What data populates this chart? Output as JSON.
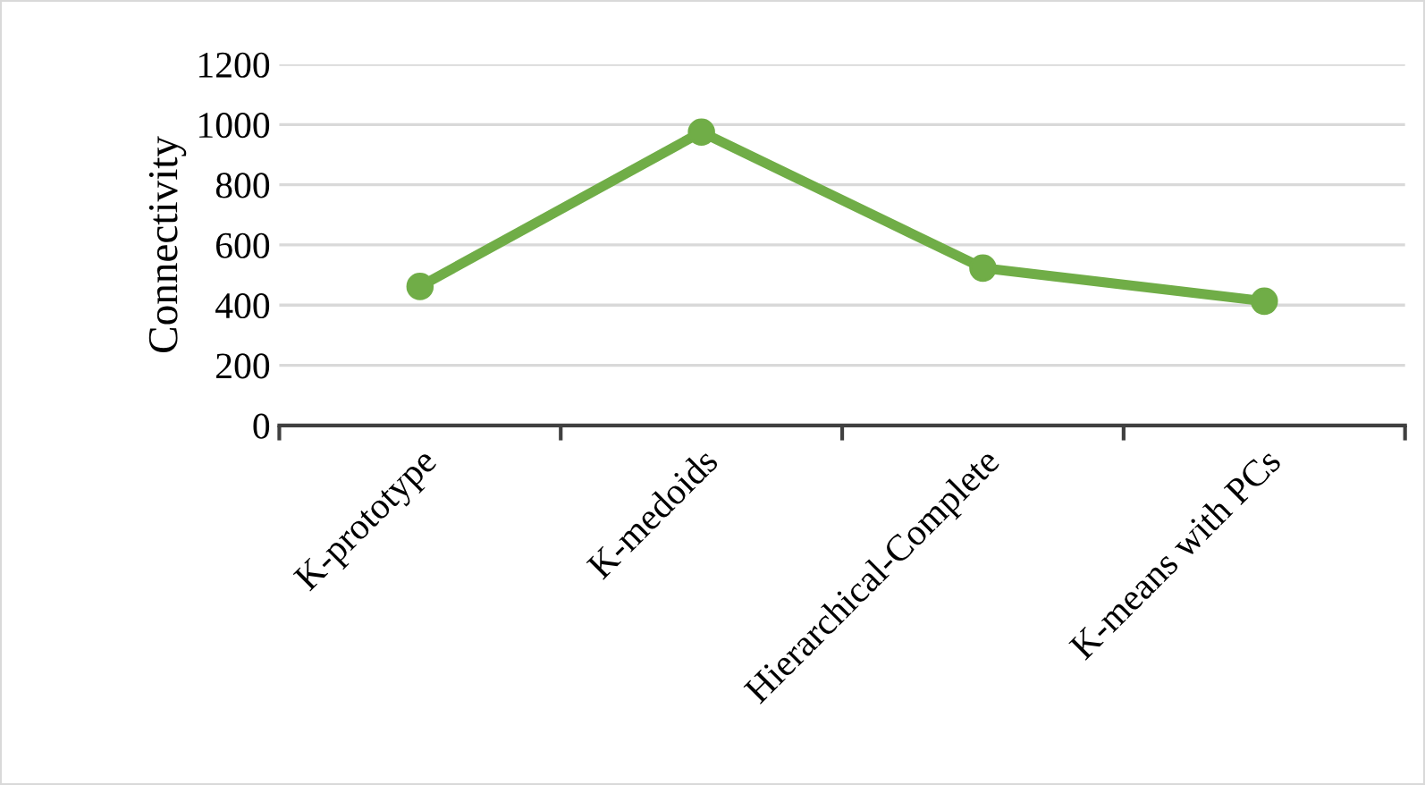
{
  "chart_data": {
    "type": "line",
    "ylabel": "Connectivity",
    "categories": [
      "K-prototype",
      "K-medoids",
      "Hierarchical-Complete",
      "K-means with PCs"
    ],
    "series": [
      {
        "color": "#70ad47",
        "values": [
          462,
          975,
          523,
          413
        ]
      }
    ],
    "ylim": [
      0,
      1200
    ],
    "yticks": [
      0,
      200,
      400,
      600,
      800,
      1000,
      1200
    ],
    "grid": "y",
    "marker": "circle",
    "line_style": "solid"
  }
}
